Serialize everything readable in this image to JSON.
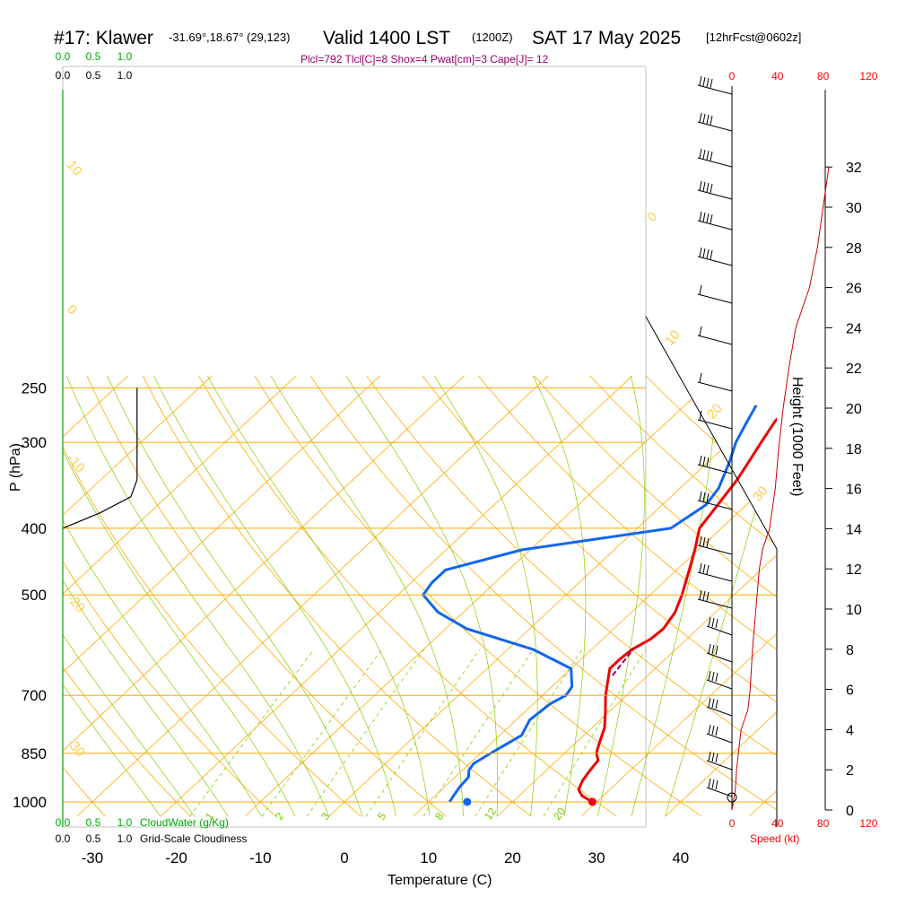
{
  "header": {
    "station": "#17: Klawer",
    "coords": "-31.69°,18.67° (29,123)",
    "valid": "Valid 1400 LST",
    "utc": "(1200Z)",
    "date": "SAT 17 May 2025",
    "forecast": "[12hrFcst@0602z]",
    "params": "Plcl=792 Tlcl[C]=8 Shox=4 Pwat[cm]=3 Cape[J]= 12"
  },
  "labels": {
    "pressure_axis": "P (hPa)",
    "temperature_axis": "Temperature (C)",
    "height_axis": "Height (1000 Feet)",
    "speed_axis": "Speed (kt)",
    "cloudwater": "CloudWater (g/Kg)",
    "cloudiness": "Grid-Scale Cloudiness"
  },
  "colors": {
    "temperature": "#ee0000",
    "dewpoint": "#1166ee",
    "isobar": "#ffaa00",
    "dry_adiabat": "#ffaa00",
    "moist_adiabat": "#88cc00",
    "mixing_ratio": "#88cc00",
    "parcel": "#990066",
    "cloudwater": "#00aa00",
    "wind_profile": "#cc0000"
  },
  "chart_data": {
    "type": "line",
    "title": "#17: Klawer",
    "xlabel": "Temperature (C)",
    "ylabel": "P (hPa)",
    "pressure_ticks": [
      1000,
      850,
      700,
      500,
      400,
      300,
      250
    ],
    "temperature_ticks": [
      -30,
      -20,
      -10,
      0,
      10,
      20,
      30,
      40
    ],
    "height_ticks_kft": [
      0,
      2,
      4,
      6,
      8,
      10,
      12,
      14,
      16,
      18,
      20,
      22,
      24,
      26,
      28,
      30,
      32
    ],
    "speed_ticks_kt": [
      0,
      40,
      80,
      120
    ],
    "cloud_ticks": [
      "0.0",
      "0.5",
      "1.0"
    ],
    "dry_adiabat_labels": [
      "10",
      "0",
      "-10",
      "-20",
      "-30",
      "0",
      "10",
      "20",
      "30"
    ],
    "mixing_ratio_labels": [
      "1",
      "2",
      "3",
      "5",
      "8",
      "12",
      "20"
    ],
    "series": [
      {
        "name": "Temperature",
        "points": [
          [
            1000,
            29.5
          ],
          [
            980,
            27.5
          ],
          [
            960,
            26.3
          ],
          [
            930,
            25.6
          ],
          [
            900,
            25.2
          ],
          [
            870,
            24.9
          ],
          [
            850,
            23.8
          ],
          [
            820,
            22.8
          ],
          [
            780,
            21.5
          ],
          [
            740,
            19.6
          ],
          [
            700,
            17.5
          ],
          [
            660,
            15.6
          ],
          [
            640,
            14.6
          ],
          [
            620,
            14.6
          ],
          [
            600,
            14.8
          ],
          [
            580,
            15.7
          ],
          [
            560,
            15.9
          ],
          [
            530,
            15.2
          ],
          [
            500,
            13.8
          ],
          [
            460,
            11.5
          ],
          [
            430,
            9.6
          ],
          [
            400,
            7.4
          ],
          [
            370,
            6.6
          ],
          [
            340,
            5.7
          ],
          [
            320,
            4.8
          ],
          [
            300,
            3.8
          ],
          [
            280,
            2.8
          ],
          [
            265,
            2.3
          ]
        ]
      },
      {
        "name": "Dewpoint",
        "points": [
          [
            1000,
            12.5
          ],
          [
            980,
            12.2
          ],
          [
            950,
            11.8
          ],
          [
            920,
            11.6
          ],
          [
            900,
            10.8
          ],
          [
            880,
            10.5
          ],
          [
            850,
            11.2
          ],
          [
            800,
            12.6
          ],
          [
            760,
            11.6
          ],
          [
            720,
            12.0
          ],
          [
            700,
            12.8
          ],
          [
            680,
            12.4
          ],
          [
            640,
            10.0
          ],
          [
            600,
            3.0
          ],
          [
            560,
            -7.5
          ],
          [
            530,
            -13.0
          ],
          [
            500,
            -17.0
          ],
          [
            480,
            -17.5
          ],
          [
            460,
            -17.5
          ],
          [
            430,
            -11.0
          ],
          [
            400,
            4.0
          ],
          [
            370,
            5.2
          ],
          [
            350,
            4.6
          ],
          [
            320,
            2.5
          ],
          [
            300,
            0.8
          ],
          [
            280,
            -0.5
          ],
          [
            265,
            -1.5
          ]
        ]
      },
      {
        "name": "Parcel",
        "points": [
          [
            655,
            15.8
          ],
          [
            630,
            15.4
          ],
          [
            610,
            15.1
          ],
          [
            598,
            14.9
          ]
        ]
      }
    ],
    "wind_speed_profile_kt": [
      [
        0,
        0
      ],
      [
        1,
        3
      ],
      [
        2,
        4
      ],
      [
        3,
        6
      ],
      [
        4,
        8
      ],
      [
        5,
        14
      ],
      [
        6,
        16
      ],
      [
        7,
        17
      ],
      [
        8,
        18
      ],
      [
        10,
        21
      ],
      [
        12,
        24
      ],
      [
        13,
        27
      ],
      [
        14,
        33
      ],
      [
        16,
        38
      ],
      [
        18,
        41
      ],
      [
        20,
        45
      ],
      [
        22,
        50
      ],
      [
        24,
        56
      ],
      [
        26,
        68
      ],
      [
        28,
        75
      ],
      [
        30,
        80
      ],
      [
        32,
        85
      ]
    ],
    "cloud_fraction_profile": [
      [
        250,
        0.6
      ],
      [
        300,
        0.6
      ],
      [
        340,
        0.6
      ],
      [
        360,
        0.55
      ],
      [
        380,
        0.3
      ],
      [
        400,
        0.0
      ]
    ],
    "lcl_hpa": 792,
    "surface_marker_temp": 29.5,
    "surface_marker_dew": 14.6
  }
}
